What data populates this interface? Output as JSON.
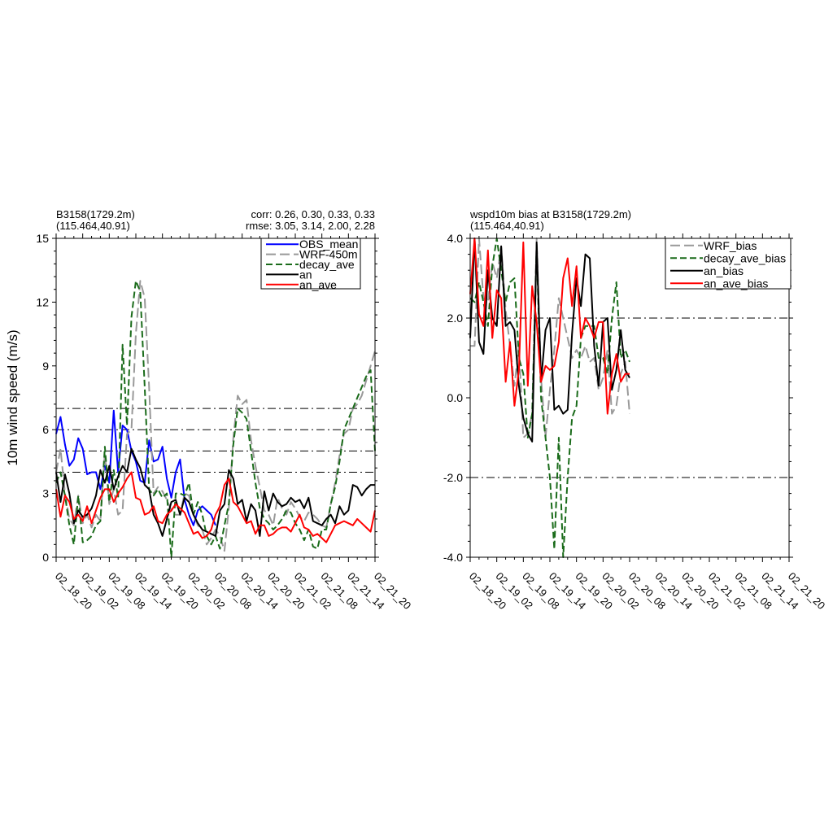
{
  "colors": {
    "obs": "#0000ff",
    "wrf": "#999999",
    "decay": "#1a6b1a",
    "an": "#000000",
    "an_ave": "#ff0000"
  },
  "chart_data": [
    {
      "type": "line",
      "title_left_1": "B3158(1729.2m)",
      "title_left_2": "(115.464,40.91)",
      "title_right_1": "corr:  0.26, 0.30, 0.33, 0.33",
      "title_right_2": "rmse: 3.05, 3.14, 2.00, 2.28",
      "ylabel": "10m wind speed (m/s)",
      "xlabel": "",
      "ylim": [
        0,
        15
      ],
      "yticks": [
        0,
        3,
        6,
        9,
        12,
        15
      ],
      "ytick_labels": [
        "0",
        "3",
        "6",
        "9",
        "12",
        "15"
      ],
      "xlim": [
        0,
        72
      ],
      "xticks": [
        0,
        6,
        12,
        18,
        24,
        30,
        36,
        42,
        48,
        54,
        60,
        66,
        72
      ],
      "xtick_labels": [
        "02_18_20",
        "02_19_02",
        "02_19_08",
        "02_19_14",
        "02_19_20",
        "02_20_02",
        "02_20_08",
        "02_20_14",
        "02_20_20",
        "02_21_02",
        "02_21_08",
        "02_21_14",
        "02_21_20"
      ],
      "ref_lines": [
        4,
        5,
        6,
        7
      ],
      "legend_position": "top-right",
      "series": [
        {
          "name": "OBS_mean",
          "color": "#0000ff",
          "dash": "solid",
          "x": [
            0,
            1,
            2,
            3,
            4,
            5,
            6,
            7,
            8,
            9,
            10,
            11,
            12,
            13,
            14,
            15,
            16,
            17,
            18,
            19,
            20,
            21,
            22,
            23,
            24,
            25,
            26,
            27,
            28,
            29,
            30,
            31,
            32,
            33,
            34,
            35,
            36
          ],
          "y": [
            5.8,
            6.6,
            5.3,
            4.3,
            4.6,
            5.6,
            5.1,
            3.9,
            4.0,
            4.0,
            3.2,
            4.3,
            3.5,
            6.9,
            4.0,
            6.2,
            6.0,
            5.0,
            4.5,
            3.6,
            3.5,
            5.5,
            4.5,
            4.6,
            5.2,
            3.7,
            2.8,
            4.0,
            4.6,
            2.7,
            2.0,
            1.5,
            2.2,
            2.4,
            2.2,
            2.0,
            1.5
          ]
        },
        {
          "name": "WRF-450m",
          "color": "#999999",
          "dash": "long",
          "x": [
            0,
            1,
            2,
            3,
            4,
            5,
            6,
            7,
            8,
            9,
            10,
            11,
            12,
            13,
            14,
            15,
            16,
            17,
            18,
            19,
            20,
            21,
            22,
            23,
            24,
            25,
            26,
            27,
            28,
            29,
            30,
            31,
            32,
            33,
            34,
            35,
            36,
            37,
            38,
            39,
            40,
            41,
            42,
            43,
            44,
            45,
            46,
            47,
            48,
            49,
            50,
            51,
            52,
            53,
            54,
            55,
            56,
            57,
            58,
            59,
            60,
            61,
            62,
            63,
            64,
            65,
            66,
            67,
            68,
            69,
            70,
            71,
            72
          ],
          "y": [
            4.0,
            5.1,
            3.0,
            1.8,
            1.5,
            2.9,
            1.6,
            2.0,
            1.4,
            2.0,
            1.7,
            4.9,
            2.5,
            3.2,
            2.0,
            2.2,
            5.8,
            6.0,
            10.5,
            13.0,
            12.2,
            8.0,
            3.0,
            3.3,
            3.1,
            2.7,
            2.2,
            2.0,
            2.0,
            3.0,
            2.9,
            2.0,
            1.5,
            1.3,
            0.6,
            0.9,
            1.3,
            1.0,
            0.3,
            2.3,
            5.6,
            7.6,
            7.2,
            7.4,
            5.5,
            4.3,
            3.3,
            2.2,
            2.0,
            1.5,
            2.8,
            2.3,
            2.0,
            2.6,
            2.3,
            1.9,
            1.7,
            2.1,
            2.0,
            1.8,
            1.5,
            1.4,
            2.5,
            3.5,
            4.8,
            5.8,
            6.0,
            7.0,
            7.2,
            7.6,
            8.3,
            9.0,
            9.7
          ]
        },
        {
          "name": "decay_ave",
          "color": "#1a6b1a",
          "dash": "medium",
          "x": [
            0,
            1,
            2,
            3,
            4,
            5,
            6,
            7,
            8,
            9,
            10,
            11,
            12,
            13,
            14,
            15,
            16,
            17,
            18,
            19,
            20,
            21,
            22,
            23,
            24,
            25,
            26,
            27,
            28,
            29,
            30,
            31,
            32,
            33,
            34,
            35,
            36,
            37,
            38,
            39,
            40,
            41,
            42,
            43,
            44,
            45,
            46,
            47,
            48,
            49,
            50,
            51,
            52,
            53,
            54,
            55,
            56,
            57,
            58,
            59,
            60,
            61,
            62,
            63,
            64,
            65,
            66,
            67,
            68,
            69,
            70,
            71,
            72
          ],
          "y": [
            3.5,
            4.0,
            2.9,
            1.5,
            0.6,
            2.9,
            0.7,
            0.8,
            1.0,
            1.5,
            1.7,
            5.2,
            2.6,
            4.1,
            2.8,
            10.0,
            6.2,
            11.3,
            13.0,
            12.5,
            8.0,
            3.2,
            2.9,
            3.2,
            2.8,
            3.0,
            0.0,
            3.0,
            3.0,
            2.9,
            3.5,
            2.0,
            2.6,
            2.0,
            1.0,
            0.6,
            1.0,
            0.4,
            1.5,
            2.5,
            5.3,
            7.0,
            6.8,
            6.5,
            5.0,
            3.5,
            2.3,
            1.8,
            1.6,
            1.3,
            1.5,
            1.8,
            2.2,
            2.1,
            1.6,
            1.3,
            0.8,
            1.3,
            0.5,
            0.4,
            1.3,
            1.3,
            2.5,
            3.3,
            4.5,
            6.0,
            6.5,
            7.0,
            7.5,
            8.0,
            8.5,
            8.8,
            5.0
          ]
        },
        {
          "name": "an",
          "color": "#000000",
          "dash": "solid",
          "x": [
            0,
            1,
            2,
            3,
            4,
            5,
            6,
            7,
            8,
            9,
            10,
            11,
            12,
            13,
            14,
            15,
            16,
            17,
            18,
            19,
            20,
            21,
            22,
            23,
            24,
            25,
            26,
            27,
            28,
            29,
            30,
            31,
            32,
            33,
            34,
            35,
            36,
            37,
            38,
            39,
            40,
            41,
            42,
            43,
            44,
            45,
            46,
            47,
            48,
            49,
            50,
            51,
            52,
            53,
            54,
            55,
            56,
            57,
            58,
            59,
            60,
            61,
            62,
            63,
            64,
            65,
            66,
            67,
            68,
            69,
            70,
            71,
            72
          ],
          "y": [
            4.0,
            2.6,
            3.9,
            3.0,
            1.6,
            2.2,
            1.9,
            2.0,
            2.3,
            2.9,
            4.1,
            3.5,
            4.3,
            3.2,
            3.8,
            4.3,
            4.0,
            5.1,
            4.6,
            4.2,
            3.4,
            3.2,
            2.0,
            1.6,
            1.0,
            1.8,
            2.6,
            2.7,
            2.0,
            2.8,
            2.6,
            2.0,
            1.6,
            1.3,
            1.2,
            1.1,
            1.0,
            2.2,
            2.5,
            4.1,
            3.7,
            2.5,
            2.7,
            1.7,
            2.5,
            2.2,
            1.0,
            3.1,
            2.2,
            3.0,
            2.6,
            2.4,
            2.5,
            2.8,
            2.6,
            2.7,
            2.3,
            2.8,
            1.7,
            1.6,
            1.5,
            1.8,
            2.0,
            1.6,
            2.4,
            2.0,
            2.2,
            3.4,
            3.3,
            2.9,
            3.2,
            3.4,
            3.4
          ]
        },
        {
          "name": "an_ave",
          "color": "#ff0000",
          "dash": "solid",
          "x": [
            0,
            1,
            2,
            3,
            4,
            5,
            6,
            7,
            8,
            9,
            10,
            11,
            12,
            13,
            14,
            15,
            16,
            17,
            18,
            19,
            20,
            21,
            22,
            23,
            24,
            25,
            26,
            27,
            28,
            29,
            30,
            31,
            32,
            33,
            34,
            35,
            36,
            37,
            38,
            39,
            40,
            41,
            42,
            43,
            44,
            45,
            46,
            47,
            48,
            49,
            50,
            51,
            52,
            53,
            54,
            55,
            56,
            57,
            58,
            59,
            60,
            61,
            62,
            63,
            64,
            65,
            66,
            67,
            68,
            69,
            70,
            71,
            72
          ],
          "y": [
            3.2,
            1.9,
            2.9,
            2.6,
            1.8,
            2.0,
            1.7,
            2.4,
            1.6,
            2.2,
            2.8,
            3.2,
            3.2,
            2.6,
            3.0,
            3.3,
            3.7,
            4.0,
            2.8,
            2.7,
            2.0,
            2.1,
            2.4,
            1.7,
            1.6,
            2.0,
            2.2,
            2.5,
            2.3,
            2.1,
            1.6,
            1.1,
            1.2,
            0.9,
            1.0,
            1.3,
            2.0,
            2.4,
            3.4,
            3.7,
            2.6,
            2.4,
            2.0,
            1.6,
            1.7,
            1.1,
            1.5,
            1.5,
            1.0,
            1.1,
            1.3,
            1.4,
            1.4,
            1.2,
            1.6,
            2.0,
            1.4,
            1.3,
            1.0,
            1.1,
            0.9,
            0.7,
            1.1,
            1.5,
            1.6,
            1.7,
            1.6,
            1.5,
            1.8,
            1.6,
            1.4,
            1.2,
            2.2
          ]
        }
      ]
    },
    {
      "type": "line",
      "title_left_1": "wspd10m bias at B3158(1729.2m)",
      "title_left_2": "(115.464,40.91)",
      "ylabel": "",
      "xlabel": "",
      "ylim": [
        -4,
        4
      ],
      "yticks": [
        -4,
        -2,
        0,
        2,
        4
      ],
      "ytick_labels": [
        "-4.0",
        "-2.0",
        "0.0",
        "2.0",
        "4.0"
      ],
      "xlim": [
        0,
        72
      ],
      "xticks": [
        0,
        6,
        12,
        18,
        24,
        30,
        36,
        42,
        48,
        54,
        60,
        66,
        72
      ],
      "xtick_labels": [
        "02_18_20",
        "02_19_02",
        "02_19_08",
        "02_19_14",
        "02_19_20",
        "02_20_02",
        "02_20_08",
        "02_20_14",
        "02_20_20",
        "02_21_02",
        "02_21_08",
        "02_21_14",
        "02_21_20"
      ],
      "ref_lines": [
        -2,
        2
      ],
      "legend_position": "top-right",
      "series": [
        {
          "name": "WRF_bias",
          "color": "#999999",
          "dash": "long",
          "x": [
            0,
            1,
            2,
            3,
            4,
            5,
            6,
            7,
            8,
            9,
            10,
            11,
            12,
            13,
            14,
            15,
            16,
            17,
            18,
            19,
            20,
            21,
            22,
            23,
            24,
            25,
            26,
            27,
            28,
            29,
            30,
            31,
            32,
            33,
            34,
            35,
            36
          ],
          "y": [
            1.3,
            1.3,
            4.0,
            2.5,
            2.4,
            3.4,
            3.0,
            3.8,
            2.2,
            1.3,
            0.3,
            1.3,
            -1.0,
            -0.9,
            -0.4,
            4.0,
            0.5,
            -1.0,
            0.2,
            1.2,
            2.5,
            2.0,
            1.5,
            1.0,
            1.2,
            1.0,
            1.3,
            0.9,
            1.0,
            0.2,
            0.5,
            1.2,
            -0.4,
            -0.2,
            0.6,
            0.9,
            -0.4
          ]
        },
        {
          "name": "decay_ave_bias",
          "color": "#1a6b1a",
          "dash": "medium",
          "x": [
            0,
            1,
            2,
            3,
            4,
            5,
            6,
            7,
            8,
            9,
            10,
            11,
            12,
            13,
            14,
            15,
            16,
            17,
            18,
            19,
            20,
            21,
            22,
            23,
            24,
            25,
            26,
            27,
            28,
            29,
            30,
            31,
            32,
            33,
            34,
            35,
            36
          ],
          "y": [
            2.5,
            2.4,
            2.9,
            2.4,
            1.8,
            3.3,
            4.0,
            3.2,
            2.4,
            2.9,
            3.0,
            1.0,
            0.6,
            -1.0,
            -0.4,
            3.8,
            0.0,
            -1.0,
            -2.0,
            -3.8,
            -1.0,
            -4.0,
            -2.0,
            -0.5,
            -0.2,
            1.5,
            1.8,
            1.8,
            1.8,
            1.0,
            1.0,
            0.6,
            2.0,
            2.9,
            1.0,
            1.2,
            0.9
          ]
        },
        {
          "name": "an_bias",
          "color": "#000000",
          "dash": "solid",
          "x": [
            0,
            1,
            2,
            3,
            4,
            5,
            6,
            7,
            8,
            9,
            10,
            11,
            12,
            13,
            14,
            15,
            16,
            17,
            18,
            19,
            20,
            21,
            22,
            23,
            24,
            25,
            26,
            27,
            28,
            29,
            30,
            31,
            32,
            33,
            34,
            35,
            36
          ],
          "y": [
            1.5,
            4.0,
            1.4,
            1.1,
            3.2,
            2.0,
            1.8,
            3.8,
            1.8,
            1.9,
            1.7,
            0.3,
            -0.5,
            -0.9,
            -1.1,
            3.9,
            0.4,
            1.7,
            2.0,
            -0.3,
            -0.2,
            -0.4,
            -0.3,
            1.6,
            3.0,
            2.3,
            3.6,
            3.5,
            1.3,
            0.3,
            1.9,
            2.0,
            0.2,
            0.7,
            1.7,
            0.7,
            0.5
          ]
        },
        {
          "name": "an_ave_bias",
          "color": "#ff0000",
          "dash": "solid",
          "x": [
            0,
            1,
            2,
            3,
            4,
            5,
            6,
            7,
            8,
            9,
            10,
            11,
            12,
            13,
            14,
            15,
            16,
            17,
            18,
            19,
            20,
            21,
            22,
            23,
            24,
            25,
            26,
            27,
            28,
            29,
            30,
            31,
            32,
            33,
            34,
            35,
            36
          ],
          "y": [
            2.6,
            4.0,
            2.1,
            1.8,
            3.7,
            1.5,
            2.7,
            2.5,
            0.4,
            1.4,
            -0.2,
            0.7,
            3.9,
            0.3,
            2.8,
            1.9,
            0.4,
            0.8,
            0.7,
            0.8,
            1.4,
            3.0,
            3.5,
            2.3,
            3.3,
            1.5,
            2.0,
            1.8,
            1.5,
            1.9,
            1.9,
            -0.4,
            0.6,
            1.1,
            0.4,
            0.6,
            0.6
          ]
        }
      ]
    }
  ]
}
